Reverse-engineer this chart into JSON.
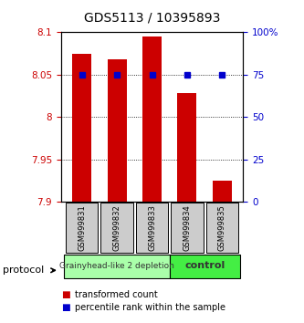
{
  "title": "GDS5113 / 10395893",
  "samples": [
    "GSM999831",
    "GSM999832",
    "GSM999833",
    "GSM999834",
    "GSM999835"
  ],
  "bar_values": [
    8.075,
    8.068,
    8.095,
    8.028,
    7.925
  ],
  "bar_bottom": 7.9,
  "percentile_values": [
    75,
    75,
    75,
    75,
    75
  ],
  "bar_color": "#cc0000",
  "percentile_color": "#0000cc",
  "ylim": [
    7.9,
    8.1
  ],
  "y_ticks": [
    7.9,
    7.95,
    8.0,
    8.05,
    8.1
  ],
  "y_tick_labels": [
    "7.9",
    "7.95",
    "8",
    "8.05",
    "8.1"
  ],
  "right_yticks": [
    0,
    25,
    50,
    75,
    100
  ],
  "right_ytick_labels": [
    "0",
    "25",
    "50",
    "75",
    "100%"
  ],
  "groups": [
    {
      "label": "Grainyhead-like 2 depletion",
      "samples": [
        0,
        1,
        2
      ],
      "color": "#aaffaa",
      "edge_color": "#000000"
    },
    {
      "label": "control",
      "samples": [
        3,
        4
      ],
      "color": "#44ee44",
      "edge_color": "#000000"
    }
  ],
  "protocol_label": "protocol",
  "legend_items": [
    {
      "label": "transformed count",
      "color": "#cc0000"
    },
    {
      "label": "percentile rank within the sample",
      "color": "#0000cc"
    }
  ],
  "background_color": "#ffffff",
  "plot_bg": "#ffffff",
  "tick_label_color_left": "#cc0000",
  "tick_label_color_right": "#0000cc"
}
